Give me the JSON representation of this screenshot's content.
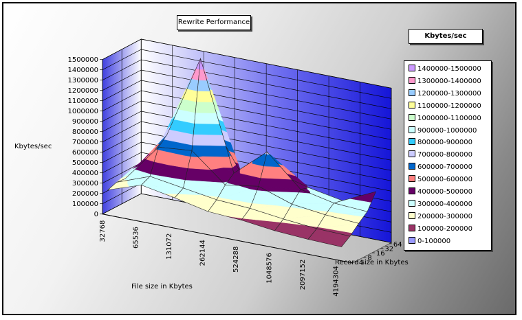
{
  "chart_data": {
    "type": "surface",
    "title": "Rewrite Performance",
    "legend_title": "Kbytes/sec",
    "ylabel": "Kbytes/sec",
    "xlabel": "File size in Kbytes",
    "zlabel": "Record size in Kbytes",
    "ylim": [
      0,
      1500000
    ],
    "y_ticks": [
      "0",
      "100000",
      "200000",
      "300000",
      "400000",
      "500000",
      "600000",
      "700000",
      "800000",
      "900000",
      "1000000",
      "1100000",
      "1200000",
      "1300000",
      "1400000",
      "1500000"
    ],
    "file_sizes": [
      "32768",
      "65536",
      "131072",
      "262144",
      "524288",
      "1048576",
      "2097152",
      "4194304"
    ],
    "record_sizes": [
      "4",
      "8",
      "16",
      "32",
      "64"
    ],
    "values": [
      [
        230000,
        260000,
        250000,
        230000,
        220000
      ],
      [
        340000,
        380000,
        620000,
        700000,
        420000
      ],
      [
        280000,
        330000,
        650000,
        1500000,
        900000
      ],
      [
        210000,
        280000,
        380000,
        450000,
        380000
      ],
      [
        190000,
        260000,
        430000,
        720000,
        480000
      ],
      [
        150000,
        220000,
        320000,
        420000,
        390000
      ],
      [
        130000,
        190000,
        280000,
        350000,
        330000
      ],
      [
        120000,
        180000,
        260000,
        330000,
        480000
      ]
    ],
    "bands": [
      {
        "label": "1400000-1500000",
        "color": "#cc99ff"
      },
      {
        "label": "1300000-1400000",
        "color": "#ff99cc"
      },
      {
        "label": "1200000-1300000",
        "color": "#99ccff"
      },
      {
        "label": "1100000-1200000",
        "color": "#ffff99"
      },
      {
        "label": "1000000-1100000",
        "color": "#ccffcc"
      },
      {
        "label": "900000-1000000",
        "color": "#ccffff"
      },
      {
        "label": "800000-900000",
        "color": "#33ccff"
      },
      {
        "label": "700000-800000",
        "color": "#ccccff"
      },
      {
        "label": "600000-700000",
        "color": "#0066cc"
      },
      {
        "label": "500000-600000",
        "color": "#ff8080"
      },
      {
        "label": "400000-500000",
        "color": "#660066"
      },
      {
        "label": "300000-400000",
        "color": "#ccffff"
      },
      {
        "label": "200000-300000",
        "color": "#ffffcc"
      },
      {
        "label": "100000-200000",
        "color": "#993366"
      },
      {
        "label": "0-100000",
        "color": "#9999ff"
      }
    ],
    "legend_position": "right",
    "grid": true,
    "wall_color": "#2222dd"
  }
}
